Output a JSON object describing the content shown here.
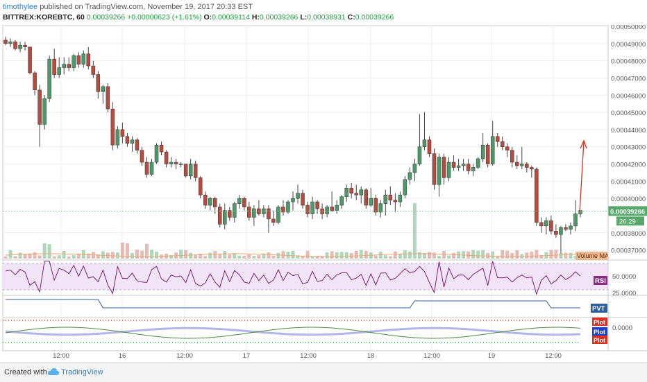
{
  "header": {
    "author": "timothylee",
    "published_text": "published on TradingView.com, November 19, 2017 20:33 EST"
  },
  "symbol_bar": {
    "symbol": "BITTREX:KOREBTC, 60",
    "last": "0.00039266",
    "change": "+0.00000623 (+1.61%)",
    "o_label": "O:",
    "o_value": "0.00039114",
    "h_label": "H:",
    "h_value": "0.00039266",
    "l_label": "L:",
    "l_value": "0.00038931",
    "c_label": "C:",
    "c_value": "0.00039266"
  },
  "price_axis": {
    "ticks": [
      "0.00050000",
      "0.00049000",
      "0.00048000",
      "0.00047000",
      "0.00046000",
      "0.00045000",
      "0.00044000",
      "0.00043000",
      "0.00042000",
      "0.00041000",
      "0.00040000",
      "0.00039266",
      "0.00038000",
      "0.00037000"
    ],
    "last_price_label": "0.00039266",
    "countdown": "26:29"
  },
  "time_axis": {
    "ticks": [
      "12:00",
      "16",
      "12:00",
      "17",
      "12:00",
      "18",
      "12:00",
      "19",
      "12:00"
    ]
  },
  "indicators": {
    "volume_label": "Volume MA",
    "rsi_label": "RSI",
    "rsi_ticks": [
      "50.0000",
      "25.0000"
    ],
    "pvt_label": "PVT",
    "plot_labels": [
      "Plot",
      "Plot",
      "Plot"
    ],
    "plot_tick": "0.0000"
  },
  "footer": {
    "created_with": "Created with",
    "brand": "TradingView"
  },
  "colors": {
    "up": "#4c9a6a",
    "down": "#b94a3e",
    "rsi_line": "#7a1f6f",
    "rsi_band": "#f1e4f7",
    "pvt_line": "#2d5f9e",
    "volume_ma": "#e8a679",
    "arrow": "#d9301f"
  },
  "chart_data": {
    "type": "candlestick",
    "symbol": "BITTREX:KOREBTC",
    "interval": "60",
    "ylim": [
      0.000365,
      0.0005
    ],
    "ohlc": [
      [
        0.000492,
        0.000494,
        0.000489,
        0.00049
      ],
      [
        0.00049,
        0.000493,
        0.000488,
        0.000491
      ],
      [
        0.000491,
        0.000492,
        0.000486,
        0.000487
      ],
      [
        0.000487,
        0.000491,
        0.000485,
        0.000489
      ],
      [
        0.000489,
        0.000491,
        0.000486,
        0.000488
      ],
      [
        0.000488,
        0.000488,
        0.000472,
        0.000473
      ],
      [
        0.000473,
        0.000474,
        0.00046,
        0.000463
      ],
      [
        0.000463,
        0.000466,
        0.00043,
        0.000443
      ],
      [
        0.000443,
        0.00046,
        0.00044,
        0.000458
      ],
      [
        0.000458,
        0.000483,
        0.000456,
        0.000481
      ],
      [
        0.000481,
        0.000487,
        0.00047,
        0.000472
      ],
      [
        0.000472,
        0.000482,
        0.00047,
        0.000476
      ],
      [
        0.000476,
        0.000482,
        0.000472,
        0.000478
      ],
      [
        0.000478,
        0.000482,
        0.000474,
        0.000476
      ],
      [
        0.000476,
        0.000484,
        0.000474,
        0.000483
      ],
      [
        0.000483,
        0.000485,
        0.000476,
        0.000478
      ],
      [
        0.000478,
        0.000486,
        0.000476,
        0.000484
      ],
      [
        0.000484,
        0.000488,
        0.000475,
        0.000477
      ],
      [
        0.000477,
        0.00048,
        0.00047,
        0.000472
      ],
      [
        0.000472,
        0.000474,
        0.000458,
        0.000462
      ],
      [
        0.000462,
        0.000466,
        0.000455,
        0.000465
      ],
      [
        0.000465,
        0.000467,
        0.00045,
        0.000452
      ],
      [
        0.000452,
        0.000456,
        0.000428,
        0.000431
      ],
      [
        0.000431,
        0.000442,
        0.000429,
        0.00044
      ],
      [
        0.00044,
        0.000444,
        0.000432,
        0.000436
      ],
      [
        0.000436,
        0.000438,
        0.00043,
        0.000432
      ],
      [
        0.000432,
        0.000436,
        0.000427,
        0.000434
      ],
      [
        0.000434,
        0.000435,
        0.000426,
        0.000428
      ],
      [
        0.000428,
        0.00043,
        0.000419,
        0.000421
      ],
      [
        0.000421,
        0.000424,
        0.000412,
        0.000414
      ],
      [
        0.000414,
        0.000423,
        0.000413,
        0.000421
      ],
      [
        0.000421,
        0.000432,
        0.00042,
        0.000431
      ],
      [
        0.000431,
        0.000433,
        0.000425,
        0.000427
      ],
      [
        0.000427,
        0.000428,
        0.000418,
        0.00042
      ],
      [
        0.00042,
        0.000424,
        0.000418,
        0.000421
      ],
      [
        0.000421,
        0.000423,
        0.000417,
        0.00042
      ],
      [
        0.00042,
        0.000421,
        0.000418,
        0.00042
      ],
      [
        0.00042,
        0.00042,
        0.000412,
        0.000413
      ],
      [
        0.000413,
        0.000423,
        0.000411,
        0.00042
      ],
      [
        0.00042,
        0.000422,
        0.00041,
        0.000412
      ],
      [
        0.000412,
        0.000413,
        0.0004,
        0.000402
      ],
      [
        0.000402,
        0.000404,
        0.000394,
        0.000396
      ],
      [
        0.000396,
        0.000401,
        0.000393,
        0.0004
      ],
      [
        0.0004,
        0.000401,
        0.000391,
        0.000395
      ],
      [
        0.000395,
        0.000397,
        0.000383,
        0.000385
      ],
      [
        0.000385,
        0.000397,
        0.000382,
        0.000393
      ],
      [
        0.000393,
        0.000395,
        0.000387,
        0.000389
      ],
      [
        0.000389,
        0.000398,
        0.000386,
        0.000397
      ],
      [
        0.000397,
        0.000402,
        0.000394,
        0.0004
      ],
      [
        0.0004,
        0.000401,
        0.000393,
        0.000395
      ],
      [
        0.000395,
        0.000398,
        0.000387,
        0.000389
      ],
      [
        0.000389,
        0.000396,
        0.000384,
        0.000394
      ],
      [
        0.000394,
        0.000399,
        0.00039,
        0.000391
      ],
      [
        0.000391,
        0.000396,
        0.000389,
        0.000394
      ],
      [
        0.000394,
        0.000396,
        0.00038,
        0.000388
      ],
      [
        0.000388,
        0.000393,
        0.000384,
        0.000386
      ],
      [
        0.000386,
        0.000396,
        0.000385,
        0.000395
      ],
      [
        0.000395,
        0.000399,
        0.00039,
        0.000392
      ],
      [
        0.000392,
        0.000399,
        0.000391,
        0.000398
      ],
      [
        0.000398,
        0.000404,
        0.000393,
        0.0004
      ],
      [
        0.0004,
        0.000408,
        0.000397,
        0.000403
      ],
      [
        0.000403,
        0.000405,
        0.000394,
        0.000396
      ],
      [
        0.000396,
        0.000398,
        0.000389,
        0.000391
      ],
      [
        0.000391,
        0.000401,
        0.000388,
        0.000398
      ],
      [
        0.000398,
        0.000399,
        0.000391,
        0.000394
      ],
      [
        0.000394,
        0.000397,
        0.000388,
        0.000391
      ],
      [
        0.000391,
        0.000396,
        0.000389,
        0.000395
      ],
      [
        0.000395,
        0.000404,
        0.000392,
        0.000393
      ],
      [
        0.000393,
        0.000399,
        0.000391,
        0.000396
      ],
      [
        0.000396,
        0.000402,
        0.000394,
        0.000401
      ],
      [
        0.000401,
        0.000408,
        0.000398,
        0.000406
      ],
      [
        0.000406,
        0.000409,
        0.0004,
        0.000403
      ],
      [
        0.000403,
        0.000408,
        0.000399,
        0.000402
      ],
      [
        0.000402,
        0.000407,
        0.000397,
        0.000405
      ],
      [
        0.000405,
        0.000406,
        0.000394,
        0.000396
      ],
      [
        0.000396,
        0.000406,
        0.000395,
        0.0004
      ],
      [
        0.0004,
        0.000402,
        0.00039,
        0.000392
      ],
      [
        0.000392,
        0.000399,
        0.000389,
        0.000397
      ],
      [
        0.000397,
        0.000405,
        0.00039,
        0.000402
      ],
      [
        0.000402,
        0.000407,
        0.000396,
        0.000399
      ],
      [
        0.000399,
        0.000403,
        0.000392,
        0.000398
      ],
      [
        0.000398,
        0.000404,
        0.000395,
        0.000402
      ],
      [
        0.000402,
        0.000413,
        0.0004,
        0.000411
      ],
      [
        0.000411,
        0.000418,
        0.000408,
        0.000415
      ],
      [
        0.000415,
        0.000423,
        0.00041,
        0.00042
      ],
      [
        0.00042,
        0.000449,
        0.000419,
        0.00043
      ],
      [
        0.00043,
        0.00045,
        0.000428,
        0.000434
      ],
      [
        0.000434,
        0.000436,
        0.000424,
        0.000426
      ],
      [
        0.000426,
        0.000429,
        0.000405,
        0.000408
      ],
      [
        0.000408,
        0.000426,
        0.000401,
        0.000424
      ],
      [
        0.000424,
        0.000426,
        0.000408,
        0.000412
      ],
      [
        0.000412,
        0.000424,
        0.00041,
        0.000421
      ],
      [
        0.000421,
        0.000425,
        0.000416,
        0.000418
      ],
      [
        0.000418,
        0.000423,
        0.000416,
        0.000419
      ],
      [
        0.000419,
        0.000423,
        0.000416,
        0.00042
      ],
      [
        0.00042,
        0.000423,
        0.000414,
        0.000416
      ],
      [
        0.000416,
        0.00042,
        0.000413,
        0.000418
      ],
      [
        0.000418,
        0.000424,
        0.000417,
        0.000423
      ],
      [
        0.000423,
        0.000438,
        0.000421,
        0.000431
      ],
      [
        0.000431,
        0.000432,
        0.000418,
        0.00042
      ],
      [
        0.00042,
        0.000445,
        0.000419,
        0.000436
      ],
      [
        0.000436,
        0.000438,
        0.00043,
        0.000433
      ],
      [
        0.000433,
        0.000436,
        0.000428,
        0.00043
      ],
      [
        0.00043,
        0.000432,
        0.000424,
        0.000428
      ],
      [
        0.000428,
        0.00043,
        0.000418,
        0.000421
      ],
      [
        0.000421,
        0.000425,
        0.000417,
        0.000419
      ],
      [
        0.000419,
        0.00043,
        0.000417,
        0.00042
      ],
      [
        0.00042,
        0.000421,
        0.000415,
        0.000418
      ],
      [
        0.000418,
        0.000419,
        0.000412,
        0.000417
      ],
      [
        0.000417,
        0.000418,
        0.000384,
        0.000386
      ],
      [
        0.000386,
        0.000389,
        0.00038,
        0.000384
      ],
      [
        0.000384,
        0.000389,
        0.000379,
        0.000387
      ],
      [
        0.000387,
        0.00039,
        0.000379,
        0.000381
      ],
      [
        0.000381,
        0.000385,
        0.000377,
        0.000379
      ],
      [
        0.000379,
        0.000384,
        0.000368,
        0.000383
      ],
      [
        0.000383,
        0.000385,
        0.000381,
        0.000382
      ],
      [
        0.000382,
        0.000386,
        0.000379,
        0.000384
      ],
      [
        0.000384,
        0.000399,
        0.000381,
        0.000391
      ],
      [
        0.000391,
        0.000393,
        0.000389,
        0.000393
      ]
    ],
    "price_line": 0.00039266,
    "volume_spike_index": 84
  }
}
